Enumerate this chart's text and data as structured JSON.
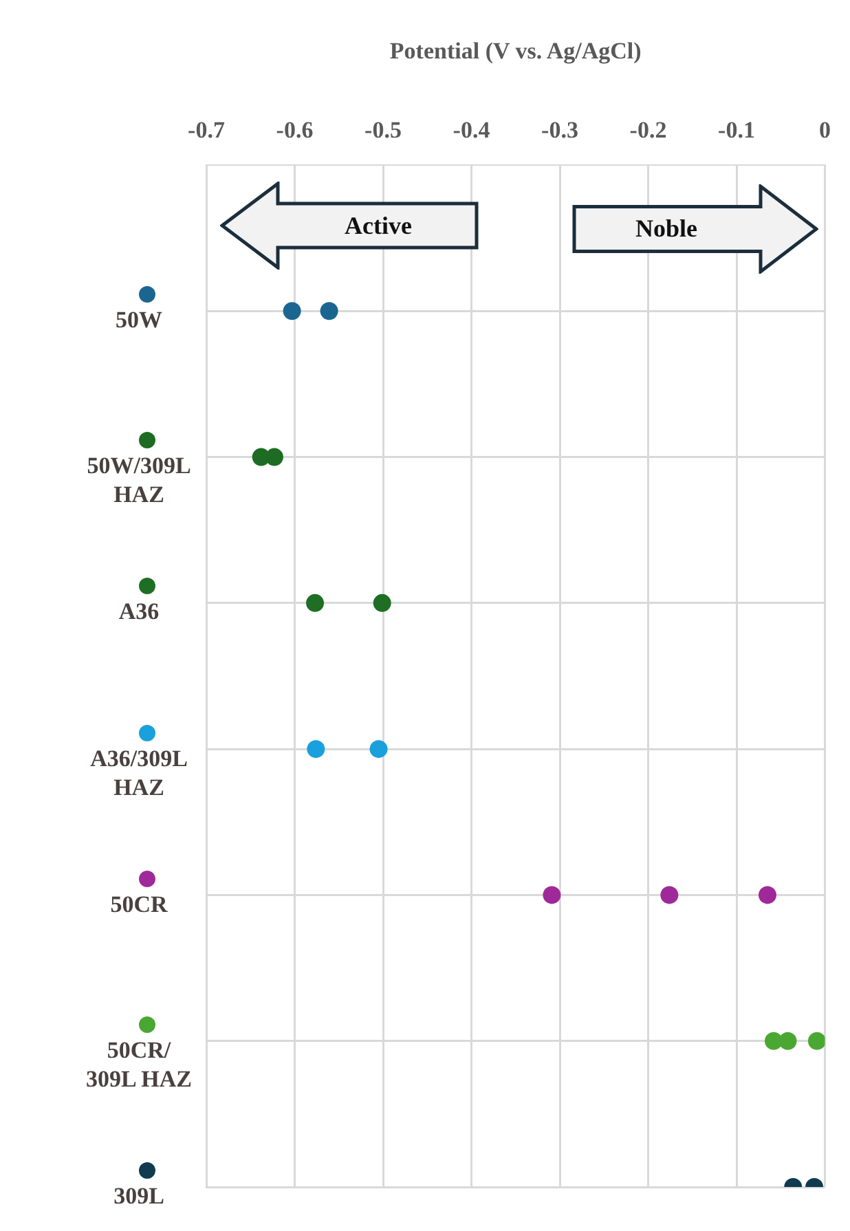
{
  "chart_data": {
    "type": "scatter",
    "orientation": "horizontal",
    "xlabel": "Potential (V vs. Ag/AgCl)",
    "xlim": [
      -0.7,
      0
    ],
    "xticks": [
      -0.7,
      -0.6,
      -0.5,
      -0.4,
      -0.3,
      -0.2,
      -0.1,
      0
    ],
    "grid": true,
    "marker": "circle",
    "categories": [
      "50W",
      "50W/309L HAZ",
      "A36",
      "A36/309L HAZ",
      "50CR",
      "50CR/309L HAZ",
      "309L"
    ],
    "series": [
      {
        "colors": [
          "#1b6690",
          "#1e6b24",
          "#1e6e24",
          "#1aa0dc",
          "#a0299a",
          "#4aa832",
          "#0f3a4f"
        ],
        "values": [
          -0.603,
          -0.638,
          -0.577,
          -0.576,
          -0.309,
          -0.058,
          -0.036
        ]
      },
      {
        "colors": [
          "#1b6690",
          "#1e6b24",
          "#1e6e24",
          "#1aa0dc",
          "#a0299a",
          "#4aa832",
          "#0f3a4f"
        ],
        "values": [
          null,
          -0.623,
          -0.501,
          -0.505,
          -0.176,
          null,
          -0.012
        ]
      },
      {
        "colors": [
          "#1b6690",
          "#1e6b24",
          "#1e6e24",
          "#1aa0dc",
          "#a0299a",
          "#4aa832",
          "#0f3a4f"
        ],
        "values": [
          -0.561,
          null,
          null,
          null,
          -0.065,
          -0.042,
          null
        ]
      },
      {
        "colors": [
          "#1b6690",
          "#1e6b24",
          "#1e6e24",
          "#1aa0dc",
          "#a0299a",
          "#4aa832",
          "#0f3a4f"
        ],
        "values": [
          null,
          null,
          null,
          null,
          null,
          -0.009,
          null
        ]
      }
    ],
    "annotations": [
      "Active",
      "Noble"
    ]
  }
}
